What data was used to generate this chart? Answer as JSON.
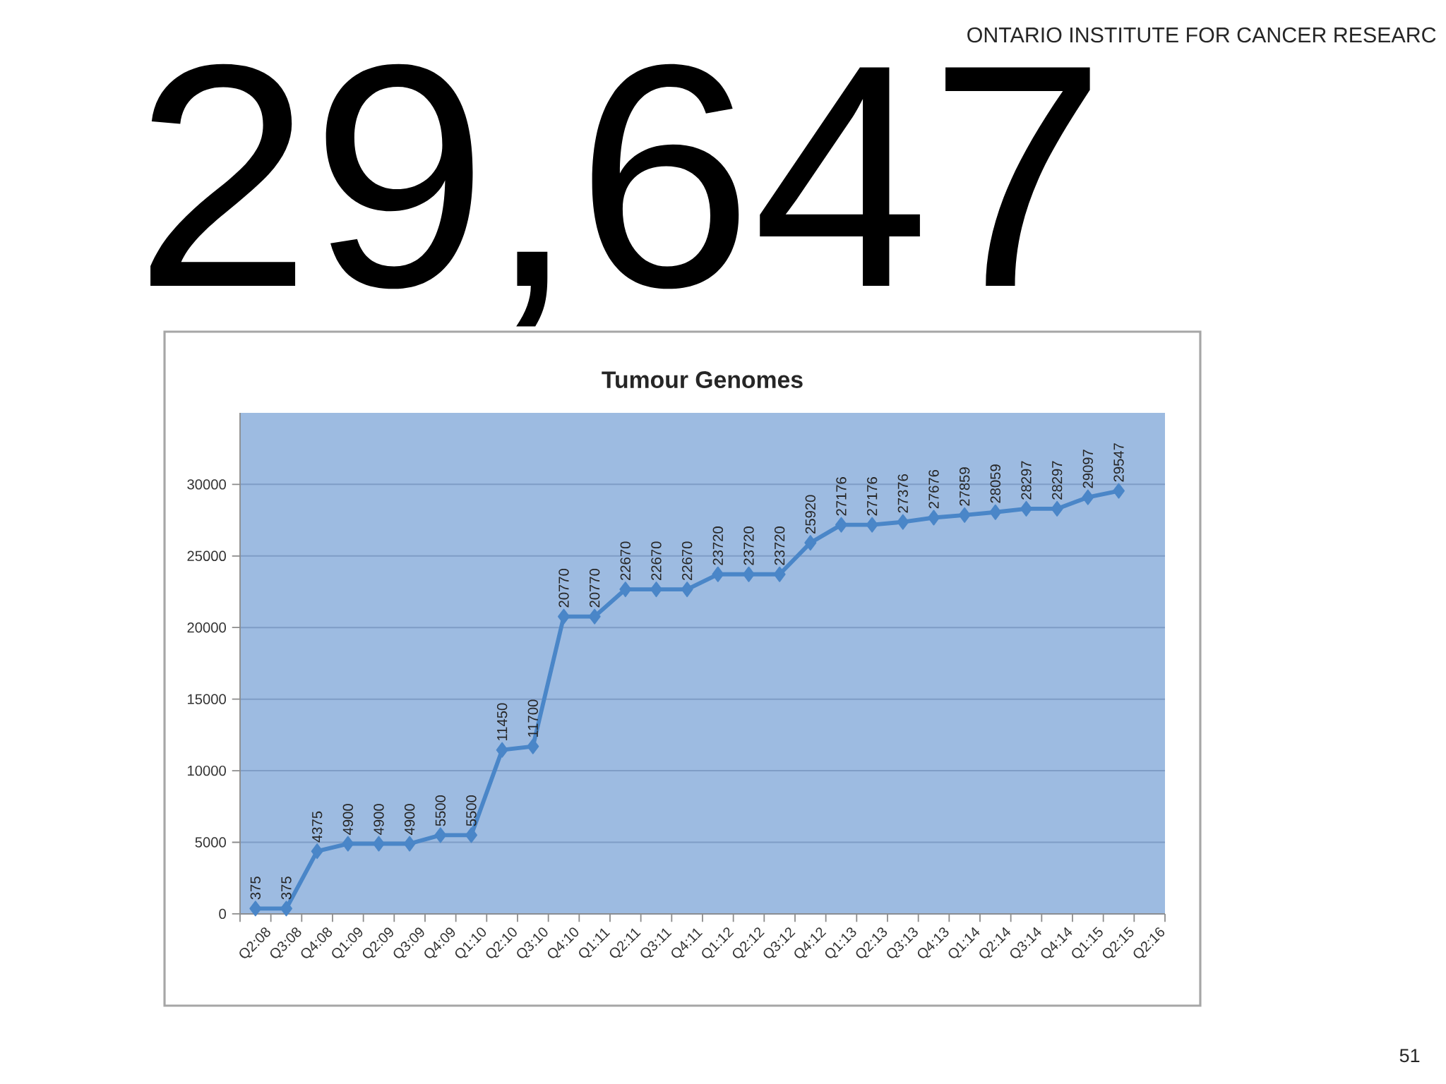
{
  "chart_data": {
    "type": "line",
    "title": "Tumour Genomes",
    "categories": [
      "Q2:08",
      "Q3:08",
      "Q4:08",
      "Q1:09",
      "Q2:09",
      "Q3:09",
      "Q4:09",
      "Q1:10",
      "Q2:10",
      "Q3:10",
      "Q4:10",
      "Q1:11",
      "Q2:11",
      "Q3:11",
      "Q4:11",
      "Q1:12",
      "Q2:12",
      "Q3:12",
      "Q4:12",
      "Q1:13",
      "Q2:13",
      "Q3:13",
      "Q4:13",
      "Q1:14",
      "Q2:14",
      "Q3:14",
      "Q4:14",
      "Q1:15",
      "Q2:15",
      "Q2:16"
    ],
    "series": [
      {
        "color": "#4a86c8",
        "values": [
          375,
          375,
          4375,
          4900,
          4900,
          4900,
          5500,
          5500,
          11450,
          11700,
          20770,
          20770,
          22670,
          22670,
          22670,
          23720,
          23720,
          23720,
          25920,
          27176,
          27176,
          27376,
          27676,
          27859,
          28059,
          28297,
          28297,
          29097,
          29547,
          null
        ]
      }
    ],
    "ylim": [
      0,
      35000
    ],
    "yticks": [
      0,
      5000,
      10000,
      15000,
      20000,
      25000,
      30000
    ],
    "grid": "y",
    "marker": "diamond",
    "line_style": "solid",
    "data_labels": true,
    "annotations": [
      "29,647",
      "ONTARIO INSTITUTE FOR CANCER RESEARC",
      "51"
    ]
  }
}
